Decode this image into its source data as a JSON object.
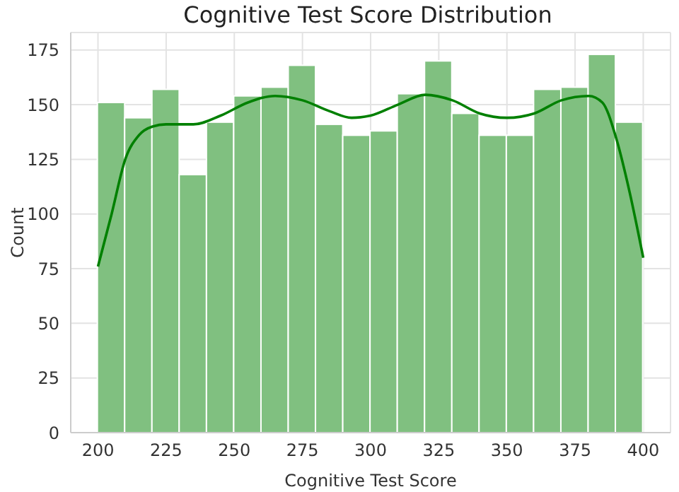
{
  "chart_data": {
    "type": "histogram",
    "title": "Cognitive Test Score Distribution",
    "xlabel": "Cognitive Test Score",
    "ylabel": "Count",
    "bins": [
      200,
      210,
      220,
      230,
      240,
      250,
      260,
      270,
      280,
      290,
      300,
      310,
      320,
      330,
      340,
      350,
      360,
      370,
      380,
      390,
      400
    ],
    "values": [
      151,
      144,
      157,
      118,
      142,
      154,
      158,
      168,
      141,
      136,
      138,
      155,
      170,
      146,
      136,
      136,
      157,
      158,
      173,
      142
    ],
    "color": "#80c080",
    "series": [
      {
        "type": "line",
        "color": "#008000",
        "x": [
          200,
          205,
          210,
          215,
          220,
          225,
          235,
          245,
          255,
          265,
          275,
          285,
          293,
          300,
          310,
          320,
          330,
          340,
          350,
          360,
          370,
          380,
          385,
          390,
          395,
          400
        ],
        "values": [
          76,
          100,
          125,
          136,
          140,
          141,
          141,
          145,
          151,
          154,
          152,
          147,
          144,
          145,
          150,
          154.5,
          152,
          146,
          144,
          146,
          152,
          154,
          151,
          135,
          110,
          80
        ]
      }
    ],
    "xlim": [
      190,
      410
    ],
    "xticks": [
      200,
      225,
      250,
      275,
      300,
      325,
      350,
      375,
      400
    ],
    "ylim": [
      0,
      183
    ],
    "yticks": [
      0,
      25,
      50,
      75,
      100,
      125,
      150,
      175
    ],
    "grid": true
  }
}
